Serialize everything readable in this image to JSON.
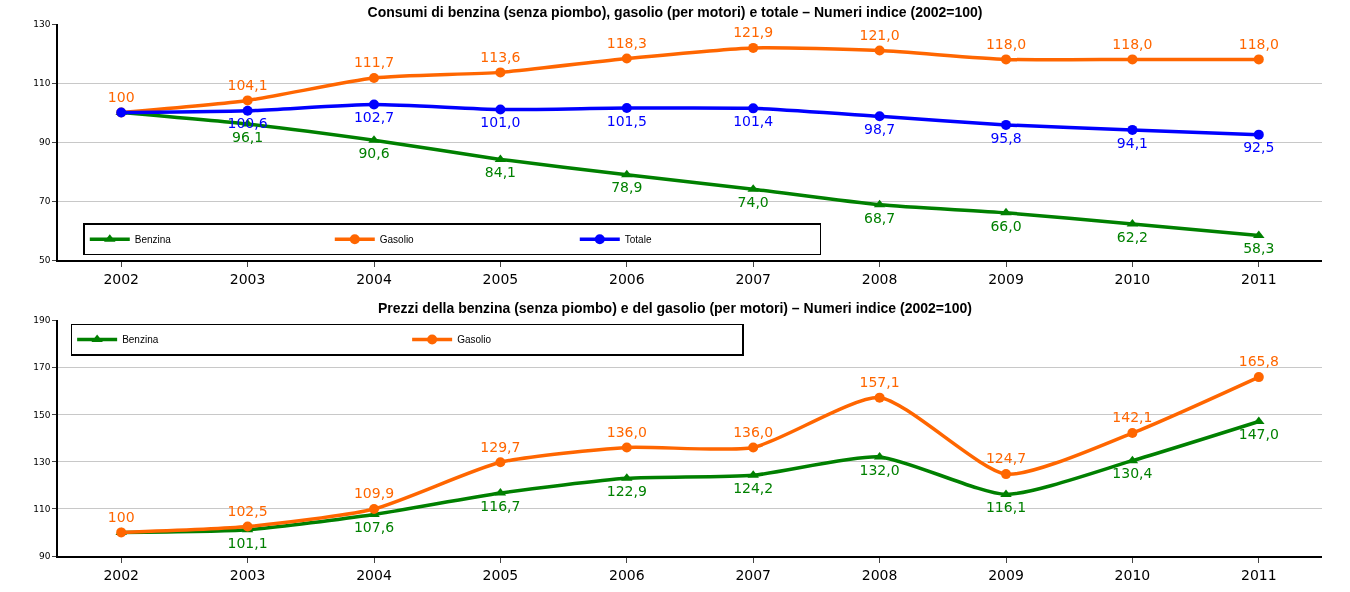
{
  "chart_data": [
    {
      "type": "line",
      "title": "Consumi di benzina (senza piombo), gasolio (per motori) e totale – Numeri indice (2002=100)",
      "categories": [
        "2002",
        "2003",
        "2004",
        "2005",
        "2006",
        "2007",
        "2008",
        "2009",
        "2010",
        "2011"
      ],
      "ylim": [
        50,
        130
      ],
      "yticks": [
        50,
        70,
        90,
        110,
        130
      ],
      "grid": "y",
      "legend": "bottom left",
      "series": [
        {
          "name": "Benzina",
          "color": "#008000",
          "marker": "triangle",
          "values": [
            100,
            96.1,
            90.6,
            84.1,
            78.9,
            74.0,
            68.7,
            66.0,
            62.2,
            58.3
          ],
          "value_labels": [
            null,
            "96,1",
            "90,6",
            "84,1",
            "78,9",
            "74,0",
            "68,7",
            "66,0",
            "62,2",
            "58,3"
          ]
        },
        {
          "name": "Gasolio",
          "color": "#ff6600",
          "marker": "circle",
          "values": [
            100,
            104.1,
            111.7,
            113.6,
            118.3,
            121.9,
            121.0,
            118.0,
            118.0,
            118.0
          ],
          "value_labels": [
            "100",
            "104,1",
            "111,7",
            "113,6",
            "118,3",
            "121,9",
            "121,0",
            "118,0",
            "118,0",
            "118,0"
          ]
        },
        {
          "name": "Totale",
          "color": "#0000ff",
          "marker": "circle",
          "values": [
            100,
            100.6,
            102.7,
            101.0,
            101.5,
            101.4,
            98.7,
            95.8,
            94.1,
            92.5
          ],
          "value_labels": [
            null,
            "100,6",
            "102,7",
            "101,0",
            "101,5",
            "101,4",
            "98,7",
            "95,8",
            "94,1",
            "92,5"
          ]
        }
      ]
    },
    {
      "type": "line",
      "title": "Prezzi della benzina (senza piombo) e del gasolio (per motori) – Numeri indice (2002=100)",
      "categories": [
        "2002",
        "2003",
        "2004",
        "2005",
        "2006",
        "2007",
        "2008",
        "2009",
        "2010",
        "2011"
      ],
      "ylim": [
        90,
        190
      ],
      "yticks": [
        90,
        110,
        130,
        150,
        170,
        190
      ],
      "grid": "y",
      "legend": "top left",
      "series": [
        {
          "name": "Benzina",
          "color": "#008000",
          "marker": "triangle",
          "values": [
            100,
            101.1,
            107.6,
            116.7,
            122.9,
            124.2,
            132.0,
            116.1,
            130.4,
            147.0
          ],
          "value_labels": [
            null,
            "101,1",
            "107,6",
            "116,7",
            "122,9",
            "124,2",
            "132,0",
            "116,1",
            "130,4",
            "147,0"
          ]
        },
        {
          "name": "Gasolio",
          "color": "#ff6600",
          "marker": "circle",
          "values": [
            100,
            102.5,
            109.9,
            129.7,
            136.0,
            136.0,
            157.1,
            124.7,
            142.1,
            165.8
          ],
          "value_labels": [
            "100",
            "102,5",
            "109,9",
            "129,7",
            "136,0",
            "136,0",
            "157,1",
            "124,7",
            "142,1",
            "165,8"
          ]
        }
      ]
    }
  ]
}
